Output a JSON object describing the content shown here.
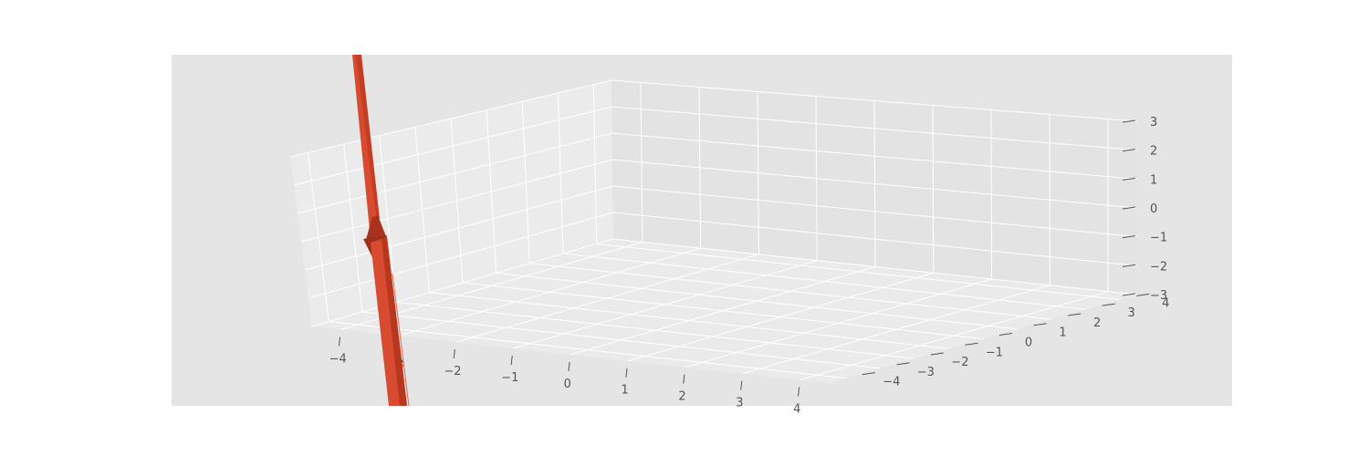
{
  "colors": {
    "axes_background": "#e5e5e5",
    "pane_floor": "#eaeaea",
    "pane_back": "#ebebeb",
    "grid": "#ffffff",
    "tick": "#555555",
    "surface": "#d84b30",
    "surface_dark": "#a8321d"
  },
  "chart_data": {
    "type": "surface",
    "title": "",
    "xlabel": "",
    "ylabel": "",
    "zlabel": "",
    "grid": true,
    "style": "ggplot",
    "xlim": [
      -4.5,
      4.5
    ],
    "ylim": [
      -4.5,
      4.5
    ],
    "zlim": [
      -3,
      3
    ],
    "x_ticks": [
      "−4",
      "−3",
      "−2",
      "−1",
      "0",
      "1",
      "2",
      "3",
      "4"
    ],
    "y_ticks": [
      "−4",
      "−3",
      "−2",
      "−1",
      "0",
      "1",
      "2",
      "3",
      "4"
    ],
    "z_ticks": [
      "−3",
      "−2",
      "−1",
      "0",
      "1",
      "2",
      "3"
    ],
    "series": [
      {
        "description_values": {
          "x": -3.6,
          "y": -4.5,
          "z_min": -12,
          "z_max": 12
        }
      }
    ]
  }
}
